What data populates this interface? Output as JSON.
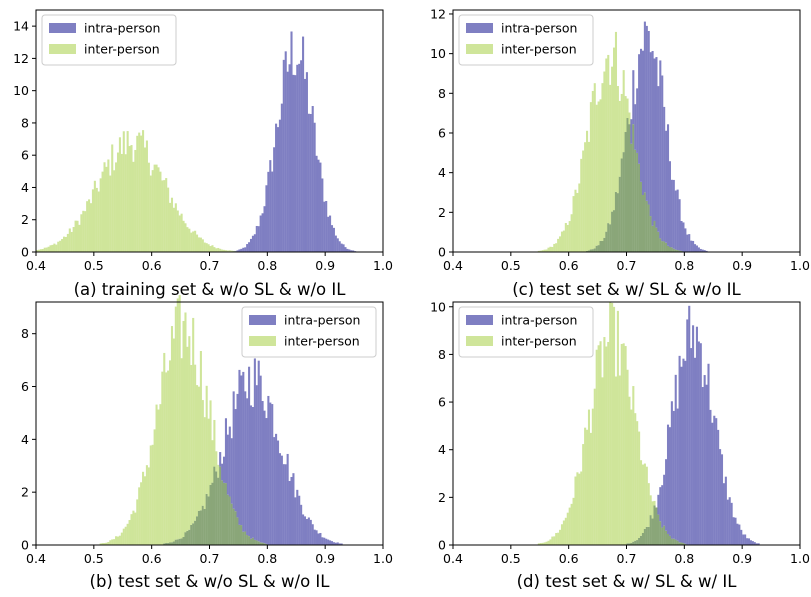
{
  "colors": {
    "intra": "#7f7fc2",
    "inter": "#cfe59a",
    "overlap": "#8aa679",
    "frame": "#000000"
  },
  "chart_data": [
    {
      "type": "bar",
      "caption": "(a) training set & w/o SL & w/o IL",
      "xlim": [
        0.4,
        1.0
      ],
      "ylim": [
        0,
        15
      ],
      "xticks": [
        "0.4",
        "0.5",
        "0.6",
        "0.7",
        "0.8",
        "0.9",
        "1.0"
      ],
      "yticks": [
        "0",
        "2",
        "4",
        "6",
        "8",
        "10",
        "12",
        "14"
      ],
      "legend_position": "top-left",
      "series": [
        {
          "name": "intra-person",
          "mean": 0.848,
          "sd": 0.032,
          "peak": 12.5
        },
        {
          "name": "inter-person",
          "mean": 0.565,
          "sd": 0.058,
          "peak": 6.8
        }
      ]
    },
    {
      "type": "bar",
      "caption": "(c) test set & w/ SL & w/o IL",
      "xlim": [
        0.4,
        1.0
      ],
      "ylim": [
        0,
        12.2
      ],
      "xticks": [
        "0.4",
        "0.5",
        "0.6",
        "0.7",
        "0.8",
        "0.9",
        "1.0"
      ],
      "yticks": [
        "0",
        "2",
        "4",
        "6",
        "8",
        "10",
        "12"
      ],
      "legend_position": "top-left",
      "series": [
        {
          "name": "intra-person",
          "mean": 0.735,
          "sd": 0.032,
          "peak": 10.9
        },
        {
          "name": "inter-person",
          "mean": 0.672,
          "sd": 0.038,
          "peak": 10.0
        }
      ]
    },
    {
      "type": "bar",
      "caption": "(b) test set & w/o SL & w/o IL",
      "xlim": [
        0.4,
        1.0
      ],
      "ylim": [
        0,
        9.2
      ],
      "xticks": [
        "0.4",
        "0.5",
        "0.6",
        "0.7",
        "0.8",
        "0.9",
        "1.0"
      ],
      "yticks": [
        "0",
        "2",
        "4",
        "6",
        "8"
      ],
      "legend_position": "top-right",
      "series": [
        {
          "name": "intra-person",
          "mean": 0.775,
          "sd": 0.05,
          "peak": 6.3
        },
        {
          "name": "inter-person",
          "mean": 0.655,
          "sd": 0.045,
          "peak": 8.2
        }
      ]
    },
    {
      "type": "bar",
      "caption": "(d) test set & w/ SL & w/ IL",
      "xlim": [
        0.4,
        1.0
      ],
      "ylim": [
        0,
        10.2
      ],
      "xticks": [
        "0.4",
        "0.5",
        "0.6",
        "0.7",
        "0.8",
        "0.9",
        "1.0"
      ],
      "yticks": [
        "0",
        "2",
        "4",
        "6",
        "8",
        "10"
      ],
      "legend_position": "top-left",
      "series": [
        {
          "name": "intra-person",
          "mean": 0.815,
          "sd": 0.036,
          "peak": 8.9
        },
        {
          "name": "inter-person",
          "mean": 0.675,
          "sd": 0.04,
          "peak": 8.7
        }
      ]
    }
  ]
}
